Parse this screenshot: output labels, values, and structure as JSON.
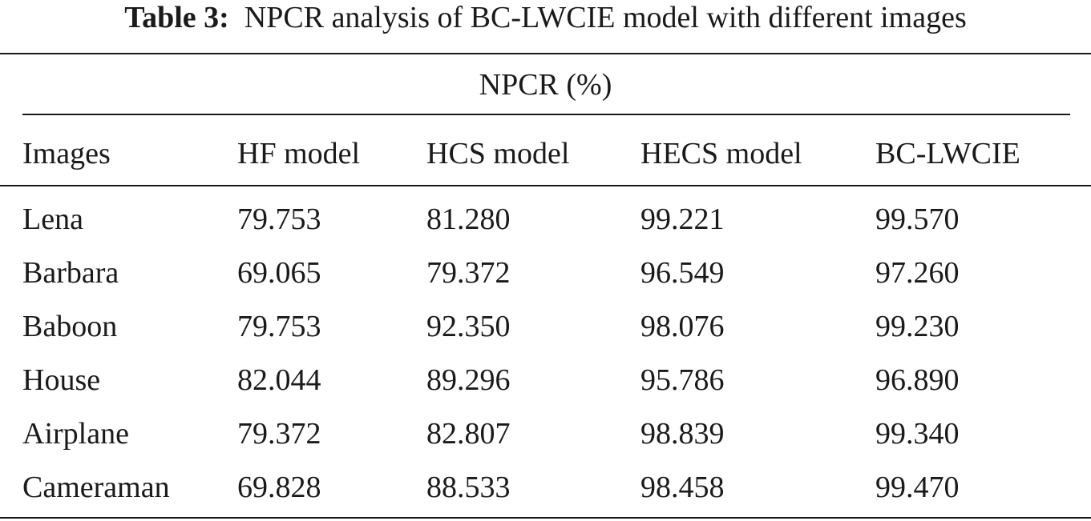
{
  "caption": {
    "label": "Table 3:",
    "text": "NPCR analysis of BC-LWCIE model with different images"
  },
  "table": {
    "group_header": "NPCR (%)",
    "columns": [
      "Images",
      "HF model",
      "HCS model",
      "HECS model",
      "BC-LWCIE"
    ],
    "rows": [
      [
        "Lena",
        "79.753",
        "81.280",
        "99.221",
        "99.570"
      ],
      [
        "Barbara",
        "69.065",
        "79.372",
        "96.549",
        "97.260"
      ],
      [
        "Baboon",
        "79.753",
        "92.350",
        "98.076",
        "99.230"
      ],
      [
        "House",
        "82.044",
        "89.296",
        "95.786",
        "96.890"
      ],
      [
        "Airplane",
        "79.372",
        "82.807",
        "98.839",
        "99.340"
      ],
      [
        "Cameraman",
        "69.828",
        "88.533",
        "98.458",
        "99.470"
      ]
    ]
  }
}
